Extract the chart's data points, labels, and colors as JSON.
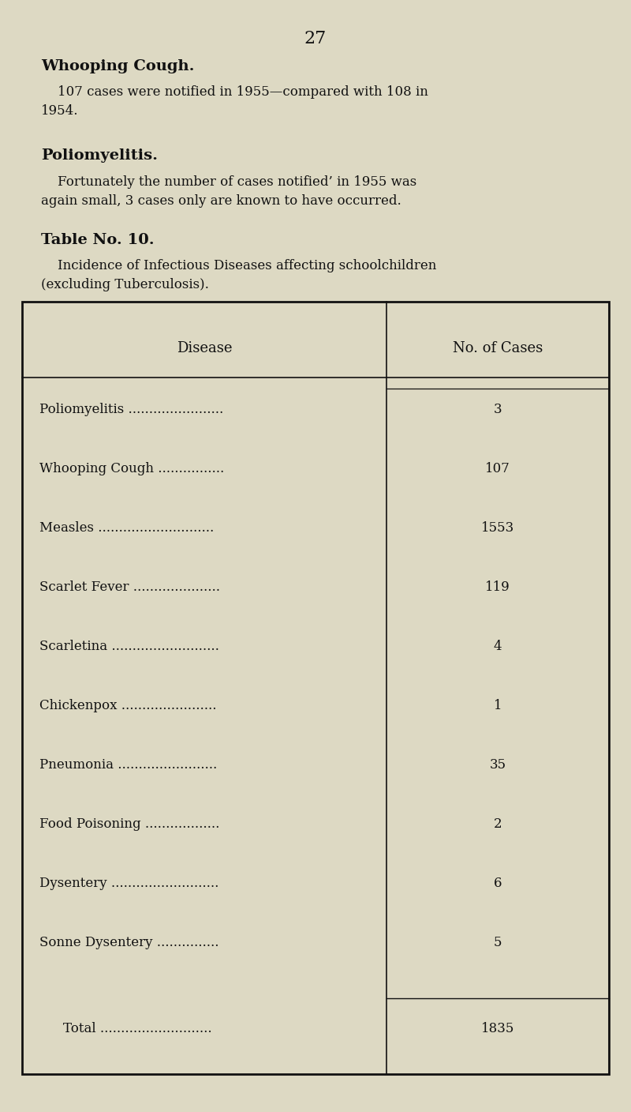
{
  "background_color": "#ddd9c3",
  "page_number": "27",
  "section1_title": "Whooping Cough.",
  "section1_body_line1": "    107 cases were notified in 1955—compared with 108 in",
  "section1_body_line2": "1954.",
  "section2_title": "Poliomyelitis.",
  "section2_body_line1": "    Fortunately the number of cases notified’ in 1955 was",
  "section2_body_line2": "again small, 3 cases only are known to have occurred.",
  "table_heading": "Table No. 10.",
  "table_subheading_line1": "    Incidence of Infectious Diseases affecting schoolchildren",
  "table_subheading_line2": "(excluding Tuberculosis).",
  "col1_header": "Disease",
  "col2_header": "No. of Cases",
  "diseases": [
    "Poliomyelitis .......................",
    "Whooping Cough ................",
    "Measles ............................",
    "Scarlet Fever .....................",
    "Scarletina ..........................",
    "Chickenpox .......................",
    "Pneumonia ........................",
    "Food Poisoning ..................",
    "Dysentery ..........................",
    "Sonne Dysentery ..............."
  ],
  "cases": [
    "3",
    "107",
    "1553",
    "119",
    "4",
    "1",
    "35",
    "2",
    "6",
    "5"
  ],
  "total_label": "Total ...........................",
  "total_value": "1835",
  "text_color": "#111111",
  "line_color": "#111111"
}
